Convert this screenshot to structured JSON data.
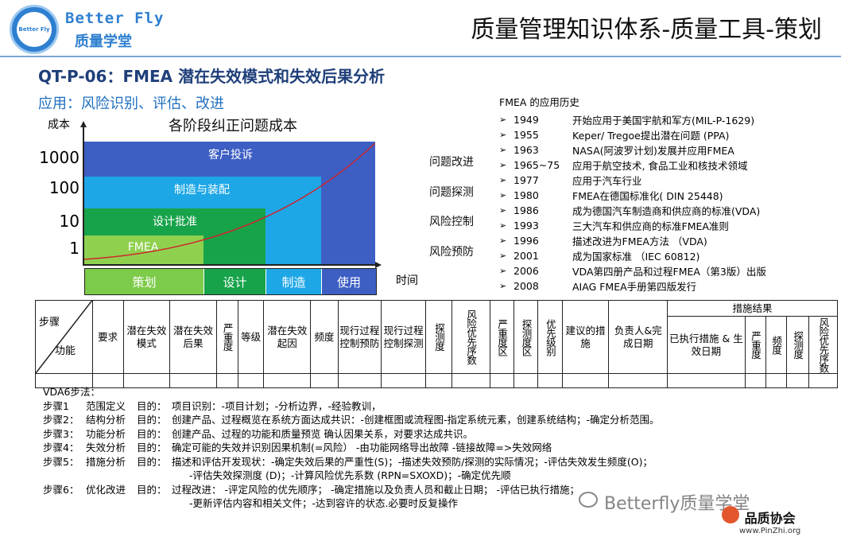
{
  "header": {
    "brand_en": "Better Fly",
    "brand_cn": "质量学堂",
    "logo_text": "Better Fly",
    "title": "质量管理知识体系-质量工具-策划"
  },
  "subtitle": "QT-P-06：FMEA 潜在失效模式和失效后果分析",
  "application": "应用：风险识别、评估、改进",
  "chart_data": {
    "type": "area",
    "title": "各阶段纠正问题成本",
    "ylabel": "成本",
    "xlabel": "时间",
    "y_ticks": [
      "1000",
      "100",
      "10",
      "1"
    ],
    "y_scale": "log",
    "blocks": [
      {
        "label": "客户投诉",
        "cost": 1000,
        "color": "#3d5fc4"
      },
      {
        "label": "制造与装配",
        "cost": 100,
        "color": "#1ea7e6"
      },
      {
        "label": "设计批准",
        "cost": 10,
        "color": "#17a34a"
      },
      {
        "label": "FMEA",
        "cost": 1,
        "color": "#8fd14f"
      }
    ],
    "stages": [
      {
        "label": "策划",
        "color": "#7dcb4a"
      },
      {
        "label": "设计",
        "color": "#17a34a"
      },
      {
        "label": "制造",
        "color": "#1ea7e6"
      },
      {
        "label": "使用",
        "color": "#3d5fc4"
      }
    ],
    "levels": [
      "问题改进",
      "问题探测",
      "风险控制",
      "风险预防"
    ],
    "curve_color": "#d0242b"
  },
  "history": {
    "title": "FMEA 的应用历史",
    "items": [
      {
        "year": "1949",
        "text": "开始应用于美国宇航和军方(MIL-P-1629)"
      },
      {
        "year": "1955",
        "text": "Keper/ Tregoe提出潜在问题 (PPA)"
      },
      {
        "year": "1963",
        "text": "NASA(阿波罗计划)发展并应用FMEA"
      },
      {
        "year": "1965~75",
        "text": "应用于航空技术, 食品工业和核技术领域"
      },
      {
        "year": "1977",
        "text": "应用于汽车行业"
      },
      {
        "year": "1980",
        "text": "FMEA在德国标准化( DIN 25448)"
      },
      {
        "year": "1986",
        "text": "成为德国汽车制造商和供应商的标准(VDA)"
      },
      {
        "year": "1993",
        "text": "三大汽车和供应商的标准FMEA准则"
      },
      {
        "year": "1996",
        "text": "描述改进为FMEA方法 （VDA)"
      },
      {
        "year": "2001",
        "text": "成为国家标准 （IEC 60812)"
      },
      {
        "year": "2006",
        "text": "VDA第四册产品和过程FMEA（第3版）出版"
      },
      {
        "year": "2008",
        "text": "AIAG FMEA手册第四版发行"
      }
    ]
  },
  "table": {
    "step_label": "步骤",
    "function_label": "功能",
    "requirement": "要求",
    "failure_mode": "潜在失效模式",
    "failure_effect": "潜在失效后果",
    "severity": "严重度",
    "class": "等级",
    "cause": "潜在失效起因",
    "occurrence": "频度",
    "prevention": "现行过程控制预防",
    "detection_control": "现行过程控制探测",
    "detection": "探测度",
    "rpn": "风险优先序数",
    "severity_degree": "严重度区",
    "detection_degree": "探测度区",
    "priority": "优先级别",
    "recommended": "建议的措施",
    "owner": "负责人&完成日期",
    "results_header": "措施结果",
    "actions_taken": "已执行措施 & 生效日期",
    "r_severity": "严重度",
    "r_occurrence": "频度",
    "r_detection": "探测度",
    "r_rpn": "风险优先序数"
  },
  "vda": {
    "title": "VDA6步法：",
    "steps": [
      {
        "label": "步骤1",
        "name": "范围定义",
        "purpose": "目的：",
        "text": "项目识别：-项目计划；-分析边界，-经验教训，"
      },
      {
        "label": "步骤2：",
        "name": "结构分析",
        "purpose": "目的：",
        "text": "创建产品、过程概览在系统方面达成共识：-创建框图或流程图-指定系统元素，创建系统结构；-确定分析范围。"
      },
      {
        "label": "步骤3：",
        "name": "功能分析",
        "purpose": "目的：",
        "text": "创建产品、过程的功能和质量预览 确认因果关系，对要求达成共识。"
      },
      {
        "label": "步骤4：",
        "name": "失效分析",
        "purpose": "目的：",
        "text": "确定可能的失效并识别因果机制(=风险）  -由功能网络导出故障 -链接故障=>失效网络"
      },
      {
        "label": "步骤5：",
        "name": "措施分析",
        "purpose": "目的：",
        "text": "描述和评估开发现状：-确定失效后果的严重性(S)；-描述失效预防/探测的实际情况；-评估失效发生频度(O)；",
        "cont": "-评估失效探测度 (D)；-计算风险优先系数 (RPN=SXOXD)；-确定优先顺"
      },
      {
        "label": "步骤6：",
        "name": "优化改进",
        "purpose": "目的：",
        "text": "过程改进：  -评定风险的优先顺序；  -确定措施以及负责人员和截止日期；  -评估已执行措施；",
        "cont": "-更新评估内容和相关文件；-达到容许的状态.必要时反复操作"
      }
    ]
  },
  "watermark": "Betterfly质量学堂",
  "badge": {
    "title": "品质协会",
    "url": "www.PinZhi.org"
  }
}
